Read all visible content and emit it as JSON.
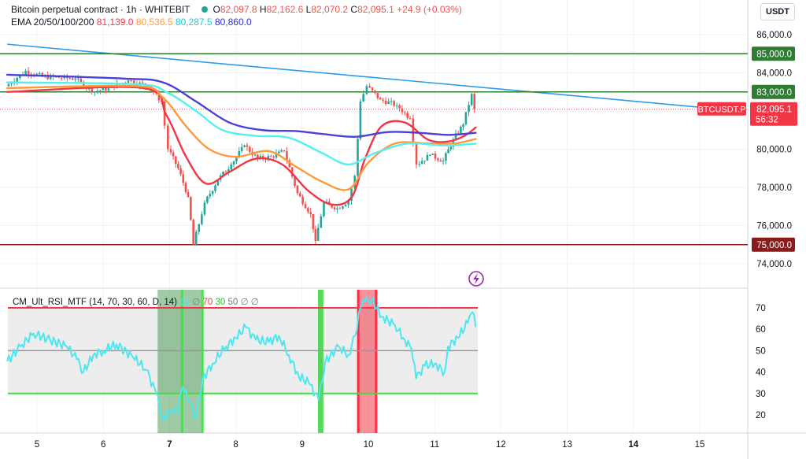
{
  "header": {
    "symbol": "Bitcoin perpetual contract",
    "interval": "1h",
    "exchange": "WHITEBIT",
    "open_label": "O",
    "open": "82,097.8",
    "high_label": "H",
    "high": "82,162.6",
    "low_label": "L",
    "low": "82,070.2",
    "close_label": "C",
    "close": "82,095.1",
    "change": "+24.9 (+0.03%)"
  },
  "ema_legend": {
    "label": "EMA 20/50/100/200",
    "ema20": "81,139.0",
    "ema50": "80,536.5",
    "ema100": "80,287.5",
    "ema200": "80,860.0"
  },
  "currency_button": "USDT",
  "rsi_legend": {
    "label": "CM_Ult_RSI_MTF (14, 70, 30, 60, D, 14)",
    "v1": "61",
    "v2": "∅",
    "v3": "70",
    "v4": "30",
    "v5": "50",
    "v6": "∅",
    "v7": "∅"
  },
  "colors": {
    "ema20": "#f23645",
    "ema50": "#ff9a3c",
    "ema100": "#54f0f0",
    "ema200": "#4a3fd6",
    "candle_up": "#26a69a",
    "candle_down": "#ef5350",
    "rsi_line": "#4ee6f0",
    "level_green": "#2e7d32",
    "level_red": "#8b1a1a",
    "trendline": "#2f9bea"
  },
  "chart_data": {
    "type": "candlestick",
    "price_axis_labels": [
      "86,000.0",
      "84,000.0",
      "80,000.0",
      "78,000.0",
      "76,000.0",
      "74,000.0"
    ],
    "price_ylim": [
      73200,
      86800
    ],
    "time_axis_labels": [
      "5",
      "6",
      "7",
      "8",
      "9",
      "10",
      "11",
      "12",
      "13",
      "14",
      "15"
    ],
    "horizontal_levels": [
      {
        "price": 85000,
        "label": "85,000.0",
        "color": "#2e7d32"
      },
      {
        "price": 83000,
        "label": "83,000.0",
        "color": "#2e7d32"
      },
      {
        "price": 75000,
        "label": "75,000.0",
        "color": "#8b1a1a"
      }
    ],
    "current_price": {
      "symbol": "BTCUSDT.P",
      "price": "82,095.1",
      "countdown": "56:32",
      "value": 82095.1
    },
    "trendline": [
      {
        "x": 4.55,
        "price": 85500
      },
      {
        "x": 15.0,
        "price": 82200
      }
    ],
    "price_keypoints": [
      {
        "x": 4.55,
        "price": 83300
      },
      {
        "x": 4.85,
        "price": 84100
      },
      {
        "x": 5.1,
        "price": 83800
      },
      {
        "x": 5.6,
        "price": 83700
      },
      {
        "x": 5.85,
        "price": 83000
      },
      {
        "x": 6.1,
        "price": 83200
      },
      {
        "x": 6.4,
        "price": 83600
      },
      {
        "x": 6.7,
        "price": 83300
      },
      {
        "x": 6.9,
        "price": 82500
      },
      {
        "x": 7.0,
        "price": 80000
      },
      {
        "x": 7.15,
        "price": 79000
      },
      {
        "x": 7.3,
        "price": 77500
      },
      {
        "x": 7.38,
        "price": 75000
      },
      {
        "x": 7.55,
        "price": 77200
      },
      {
        "x": 7.75,
        "price": 78400
      },
      {
        "x": 7.95,
        "price": 79200
      },
      {
        "x": 8.15,
        "price": 80200
      },
      {
        "x": 8.35,
        "price": 79500
      },
      {
        "x": 8.55,
        "price": 79600
      },
      {
        "x": 8.75,
        "price": 79900
      },
      {
        "x": 8.95,
        "price": 77700
      },
      {
        "x": 9.15,
        "price": 76600
      },
      {
        "x": 9.22,
        "price": 75200
      },
      {
        "x": 9.35,
        "price": 77200
      },
      {
        "x": 9.55,
        "price": 76900
      },
      {
        "x": 9.72,
        "price": 77300
      },
      {
        "x": 9.82,
        "price": 78600
      },
      {
        "x": 9.9,
        "price": 82500
      },
      {
        "x": 10.0,
        "price": 83300
      },
      {
        "x": 10.2,
        "price": 82600
      },
      {
        "x": 10.45,
        "price": 82300
      },
      {
        "x": 10.65,
        "price": 81600
      },
      {
        "x": 10.75,
        "price": 79200
      },
      {
        "x": 10.95,
        "price": 79700
      },
      {
        "x": 11.15,
        "price": 79400
      },
      {
        "x": 11.3,
        "price": 80500
      },
      {
        "x": 11.45,
        "price": 81300
      },
      {
        "x": 11.58,
        "price": 82900
      },
      {
        "x": 11.62,
        "price": 82095
      }
    ],
    "ema_series": [
      {
        "name": "EMA 20",
        "color": "#f23645",
        "points": [
          {
            "x": 4.55,
            "price": 83000
          },
          {
            "x": 6.6,
            "price": 83200
          },
          {
            "x": 6.95,
            "price": 81800
          },
          {
            "x": 7.25,
            "price": 79600
          },
          {
            "x": 7.55,
            "price": 78200
          },
          {
            "x": 7.9,
            "price": 78800
          },
          {
            "x": 8.3,
            "price": 79500
          },
          {
            "x": 8.7,
            "price": 79200
          },
          {
            "x": 9.1,
            "price": 77800
          },
          {
            "x": 9.45,
            "price": 77100
          },
          {
            "x": 9.75,
            "price": 77500
          },
          {
            "x": 9.95,
            "price": 79500
          },
          {
            "x": 10.2,
            "price": 81200
          },
          {
            "x": 10.55,
            "price": 81400
          },
          {
            "x": 10.9,
            "price": 80500
          },
          {
            "x": 11.2,
            "price": 80400
          },
          {
            "x": 11.45,
            "price": 80700
          },
          {
            "x": 11.62,
            "price": 81139
          }
        ]
      },
      {
        "name": "EMA 50",
        "color": "#ff9a3c",
        "points": [
          {
            "x": 4.55,
            "price": 83200
          },
          {
            "x": 6.5,
            "price": 83300
          },
          {
            "x": 6.9,
            "price": 82700
          },
          {
            "x": 7.25,
            "price": 81200
          },
          {
            "x": 7.6,
            "price": 80000
          },
          {
            "x": 8.0,
            "price": 79600
          },
          {
            "x": 8.5,
            "price": 79900
          },
          {
            "x": 8.9,
            "price": 79100
          },
          {
            "x": 9.3,
            "price": 78300
          },
          {
            "x": 9.7,
            "price": 77900
          },
          {
            "x": 10.0,
            "price": 79300
          },
          {
            "x": 10.4,
            "price": 80300
          },
          {
            "x": 10.9,
            "price": 80300
          },
          {
            "x": 11.3,
            "price": 80300
          },
          {
            "x": 11.62,
            "price": 80536
          }
        ]
      },
      {
        "name": "EMA 100",
        "color": "#54f0f0",
        "points": [
          {
            "x": 4.55,
            "price": 83500
          },
          {
            "x": 6.5,
            "price": 83400
          },
          {
            "x": 6.95,
            "price": 83000
          },
          {
            "x": 7.4,
            "price": 82000
          },
          {
            "x": 7.8,
            "price": 81000
          },
          {
            "x": 8.3,
            "price": 80700
          },
          {
            "x": 8.8,
            "price": 80600
          },
          {
            "x": 9.3,
            "price": 79800
          },
          {
            "x": 9.7,
            "price": 79200
          },
          {
            "x": 10.1,
            "price": 79800
          },
          {
            "x": 10.6,
            "price": 80300
          },
          {
            "x": 11.1,
            "price": 80200
          },
          {
            "x": 11.62,
            "price": 80287
          }
        ]
      },
      {
        "name": "EMA 200",
        "color": "#4a3fd6",
        "points": [
          {
            "x": 4.55,
            "price": 83900
          },
          {
            "x": 6.3,
            "price": 83700
          },
          {
            "x": 6.9,
            "price": 83500
          },
          {
            "x": 7.4,
            "price": 82500
          },
          {
            "x": 7.9,
            "price": 81400
          },
          {
            "x": 8.4,
            "price": 81000
          },
          {
            "x": 8.9,
            "price": 80950
          },
          {
            "x": 9.3,
            "price": 80800
          },
          {
            "x": 9.8,
            "price": 80650
          },
          {
            "x": 10.3,
            "price": 80900
          },
          {
            "x": 10.8,
            "price": 80850
          },
          {
            "x": 11.2,
            "price": 80750
          },
          {
            "x": 11.62,
            "price": 80860
          }
        ]
      }
    ],
    "rsi": {
      "axis_labels": [
        "70",
        "60",
        "50",
        "40",
        "30",
        "20"
      ],
      "ylim": [
        11,
        77
      ],
      "overbought": 70,
      "oversold": 30,
      "mid": 50,
      "oversold_zones": [
        {
          "x0": 6.82,
          "x1": 7.5
        },
        {
          "x0": 9.24,
          "x1": 9.32
        }
      ],
      "overbought_zones": [
        {
          "x0": 9.83,
          "x1": 10.12
        }
      ],
      "points": [
        {
          "x": 4.55,
          "price": 45
        },
        {
          "x": 4.75,
          "price": 52
        },
        {
          "x": 4.95,
          "price": 58
        },
        {
          "x": 5.2,
          "price": 55
        },
        {
          "x": 5.45,
          "price": 52
        },
        {
          "x": 5.6,
          "price": 46
        },
        {
          "x": 5.7,
          "price": 40
        },
        {
          "x": 5.85,
          "price": 48
        },
        {
          "x": 6.0,
          "price": 50
        },
        {
          "x": 6.2,
          "price": 53
        },
        {
          "x": 6.45,
          "price": 47
        },
        {
          "x": 6.65,
          "price": 41
        },
        {
          "x": 6.8,
          "price": 30
        },
        {
          "x": 6.9,
          "price": 18
        },
        {
          "x": 7.0,
          "price": 22
        },
        {
          "x": 7.1,
          "price": 21
        },
        {
          "x": 7.2,
          "price": 33
        },
        {
          "x": 7.3,
          "price": 26
        },
        {
          "x": 7.4,
          "price": 19
        },
        {
          "x": 7.5,
          "price": 37
        },
        {
          "x": 7.65,
          "price": 44
        },
        {
          "x": 7.85,
          "price": 52
        },
        {
          "x": 8.0,
          "price": 56
        },
        {
          "x": 8.15,
          "price": 61
        },
        {
          "x": 8.3,
          "price": 55
        },
        {
          "x": 8.5,
          "price": 54
        },
        {
          "x": 8.65,
          "price": 57
        },
        {
          "x": 8.8,
          "price": 48
        },
        {
          "x": 8.95,
          "price": 38
        },
        {
          "x": 9.1,
          "price": 35
        },
        {
          "x": 9.25,
          "price": 27
        },
        {
          "x": 9.35,
          "price": 45
        },
        {
          "x": 9.55,
          "price": 52
        },
        {
          "x": 9.7,
          "price": 48
        },
        {
          "x": 9.8,
          "price": 57
        },
        {
          "x": 9.88,
          "price": 70
        },
        {
          "x": 9.95,
          "price": 73
        },
        {
          "x": 10.05,
          "price": 74
        },
        {
          "x": 10.2,
          "price": 66
        },
        {
          "x": 10.4,
          "price": 62
        },
        {
          "x": 10.55,
          "price": 55
        },
        {
          "x": 10.65,
          "price": 51
        },
        {
          "x": 10.72,
          "price": 37
        },
        {
          "x": 10.85,
          "price": 43
        },
        {
          "x": 11.0,
          "price": 44
        },
        {
          "x": 11.15,
          "price": 40
        },
        {
          "x": 11.2,
          "price": 52
        },
        {
          "x": 11.35,
          "price": 56
        },
        {
          "x": 11.5,
          "price": 63
        },
        {
          "x": 11.57,
          "price": 68
        },
        {
          "x": 11.62,
          "price": 61
        }
      ]
    }
  }
}
